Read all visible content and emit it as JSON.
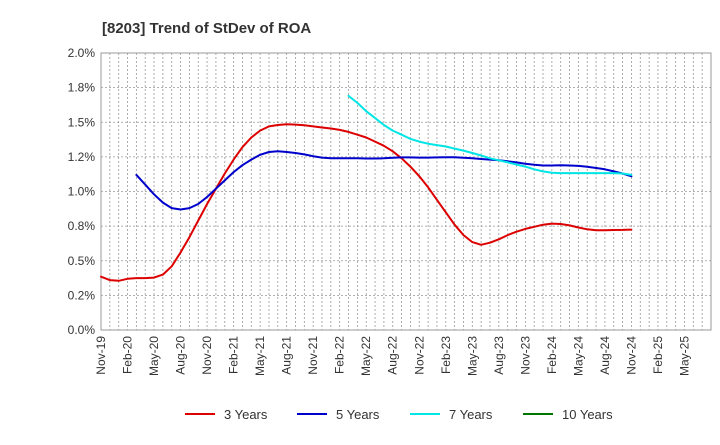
{
  "chart_data": {
    "type": "line",
    "title": "[8203]  Trend of StDev of ROA",
    "xlabel": "",
    "ylabel": "",
    "x_ticks": [
      "Nov-19",
      "Feb-20",
      "May-20",
      "Aug-20",
      "Nov-20",
      "Feb-21",
      "May-21",
      "Aug-21",
      "Nov-21",
      "Feb-22",
      "May-22",
      "Aug-22",
      "Nov-22",
      "Feb-23",
      "May-23",
      "Aug-23",
      "Nov-23",
      "Feb-24",
      "May-24",
      "Aug-24",
      "Nov-24",
      "Feb-25",
      "May-25"
    ],
    "y_ticks": [
      "0.0%",
      "0.2%",
      "0.5%",
      "0.8%",
      "1.0%",
      "1.2%",
      "1.5%",
      "1.8%",
      "2.0%"
    ],
    "ylim": [
      0,
      2.0
    ],
    "grid": true,
    "legend_position": "bottom",
    "series": [
      {
        "name": "3 Years",
        "color": "#dd0000",
        "points": [
          [
            "Nov-19",
            0.385
          ],
          [
            "Dec-19",
            0.36
          ],
          [
            "Jan-20",
            0.355
          ],
          [
            "Feb-20",
            0.37
          ],
          [
            "Mar-20",
            0.375
          ],
          [
            "Apr-20",
            0.375
          ],
          [
            "May-20",
            0.378
          ],
          [
            "Jun-20",
            0.4
          ],
          [
            "Jul-20",
            0.46
          ],
          [
            "Aug-20",
            0.56
          ],
          [
            "Sep-20",
            0.67
          ],
          [
            "Oct-20",
            0.79
          ],
          [
            "Nov-20",
            0.91
          ],
          [
            "Dec-20",
            1.02
          ],
          [
            "Jan-21",
            1.13
          ],
          [
            "Feb-21",
            1.23
          ],
          [
            "Mar-21",
            1.32
          ],
          [
            "Apr-21",
            1.39
          ],
          [
            "May-21",
            1.44
          ],
          [
            "Jun-21",
            1.47
          ],
          [
            "Jul-21",
            1.48
          ],
          [
            "Aug-21",
            1.485
          ],
          [
            "Sep-21",
            1.483
          ],
          [
            "Oct-21",
            1.478
          ],
          [
            "Nov-21",
            1.47
          ],
          [
            "Dec-21",
            1.462
          ],
          [
            "Jan-22",
            1.455
          ],
          [
            "Feb-22",
            1.445
          ],
          [
            "Mar-22",
            1.43
          ],
          [
            "Apr-22",
            1.41
          ],
          [
            "May-22",
            1.39
          ],
          [
            "Jun-22",
            1.36
          ],
          [
            "Jul-22",
            1.33
          ],
          [
            "Aug-22",
            1.29
          ],
          [
            "Sep-22",
            1.24
          ],
          [
            "Oct-22",
            1.18
          ],
          [
            "Nov-22",
            1.11
          ],
          [
            "Dec-22",
            1.03
          ],
          [
            "Jan-23",
            0.94
          ],
          [
            "Feb-23",
            0.85
          ],
          [
            "Mar-23",
            0.76
          ],
          [
            "Apr-23",
            0.685
          ],
          [
            "May-23",
            0.635
          ],
          [
            "Jun-23",
            0.615
          ],
          [
            "Jul-23",
            0.63
          ],
          [
            "Aug-23",
            0.655
          ],
          [
            "Sep-23",
            0.685
          ],
          [
            "Oct-23",
            0.71
          ],
          [
            "Nov-23",
            0.73
          ],
          [
            "Dec-23",
            0.745
          ],
          [
            "Jan-24",
            0.76
          ],
          [
            "Feb-24",
            0.768
          ],
          [
            "Mar-24",
            0.765
          ],
          [
            "Apr-24",
            0.755
          ],
          [
            "May-24",
            0.74
          ],
          [
            "Jun-24",
            0.727
          ],
          [
            "Jul-24",
            0.72
          ],
          [
            "Aug-24",
            0.72
          ],
          [
            "Sep-24",
            0.722
          ],
          [
            "Oct-24",
            0.723
          ],
          [
            "Nov-24",
            0.725
          ]
        ]
      },
      {
        "name": "5 Years",
        "color": "#0000cc",
        "points": [
          [
            "Mar-20",
            1.12
          ],
          [
            "Apr-20",
            1.05
          ],
          [
            "May-20",
            0.98
          ],
          [
            "Jun-20",
            0.92
          ],
          [
            "Jul-20",
            0.88
          ],
          [
            "Aug-20",
            0.87
          ],
          [
            "Sep-20",
            0.88
          ],
          [
            "Oct-20",
            0.91
          ],
          [
            "Nov-20",
            0.96
          ],
          [
            "Dec-20",
            1.02
          ],
          [
            "Jan-21",
            1.08
          ],
          [
            "Feb-21",
            1.14
          ],
          [
            "Mar-21",
            1.19
          ],
          [
            "Apr-21",
            1.23
          ],
          [
            "May-21",
            1.265
          ],
          [
            "Jun-21",
            1.285
          ],
          [
            "Jul-21",
            1.29
          ],
          [
            "Aug-21",
            1.285
          ],
          [
            "Sep-21",
            1.278
          ],
          [
            "Oct-21",
            1.268
          ],
          [
            "Nov-21",
            1.255
          ],
          [
            "Dec-21",
            1.245
          ],
          [
            "Jan-22",
            1.24
          ],
          [
            "Feb-22",
            1.24
          ],
          [
            "Mar-22",
            1.24
          ],
          [
            "Apr-22",
            1.24
          ],
          [
            "May-22",
            1.238
          ],
          [
            "Jun-22",
            1.238
          ],
          [
            "Jul-22",
            1.24
          ],
          [
            "Aug-22",
            1.243
          ],
          [
            "Sep-22",
            1.246
          ],
          [
            "Oct-22",
            1.246
          ],
          [
            "Nov-22",
            1.245
          ],
          [
            "Dec-22",
            1.245
          ],
          [
            "Jan-23",
            1.246
          ],
          [
            "Feb-23",
            1.248
          ],
          [
            "Mar-23",
            1.247
          ],
          [
            "Apr-23",
            1.244
          ],
          [
            "May-23",
            1.24
          ],
          [
            "Jun-23",
            1.235
          ],
          [
            "Jul-23",
            1.23
          ],
          [
            "Aug-23",
            1.225
          ],
          [
            "Sep-23",
            1.218
          ],
          [
            "Oct-23",
            1.21
          ],
          [
            "Nov-23",
            1.2
          ],
          [
            "Dec-23",
            1.193
          ],
          [
            "Jan-24",
            1.188
          ],
          [
            "Feb-24",
            1.188
          ],
          [
            "Mar-24",
            1.189
          ],
          [
            "Apr-24",
            1.188
          ],
          [
            "May-24",
            1.185
          ],
          [
            "Jun-24",
            1.178
          ],
          [
            "Jul-24",
            1.17
          ],
          [
            "Aug-24",
            1.16
          ],
          [
            "Sep-24",
            1.145
          ],
          [
            "Oct-24",
            1.13
          ],
          [
            "Nov-24",
            1.11
          ]
        ]
      },
      {
        "name": "7 Years",
        "color": "#00e5e5",
        "points": [
          [
            "Mar-22",
            1.69
          ],
          [
            "Apr-22",
            1.64
          ],
          [
            "May-22",
            1.58
          ],
          [
            "Jun-22",
            1.53
          ],
          [
            "Jul-22",
            1.48
          ],
          [
            "Aug-22",
            1.44
          ],
          [
            "Sep-22",
            1.41
          ],
          [
            "Oct-22",
            1.38
          ],
          [
            "Nov-22",
            1.36
          ],
          [
            "Dec-22",
            1.345
          ],
          [
            "Jan-23",
            1.335
          ],
          [
            "Feb-23",
            1.325
          ],
          [
            "Mar-23",
            1.31
          ],
          [
            "Apr-23",
            1.295
          ],
          [
            "May-23",
            1.278
          ],
          [
            "Jun-23",
            1.26
          ],
          [
            "Jul-23",
            1.24
          ],
          [
            "Aug-23",
            1.225
          ],
          [
            "Sep-23",
            1.21
          ],
          [
            "Oct-23",
            1.195
          ],
          [
            "Nov-23",
            1.18
          ],
          [
            "Dec-23",
            1.16
          ],
          [
            "Jan-24",
            1.145
          ],
          [
            "Feb-24",
            1.135
          ],
          [
            "Mar-24",
            1.133
          ],
          [
            "Apr-24",
            1.133
          ],
          [
            "May-24",
            1.133
          ],
          [
            "Jun-24",
            1.133
          ],
          [
            "Jul-24",
            1.133
          ],
          [
            "Aug-24",
            1.133
          ],
          [
            "Sep-24",
            1.133
          ],
          [
            "Oct-24",
            1.13
          ],
          [
            "Nov-24",
            1.12
          ]
        ]
      },
      {
        "name": "10 Years",
        "color": "#007700",
        "points": []
      }
    ]
  }
}
